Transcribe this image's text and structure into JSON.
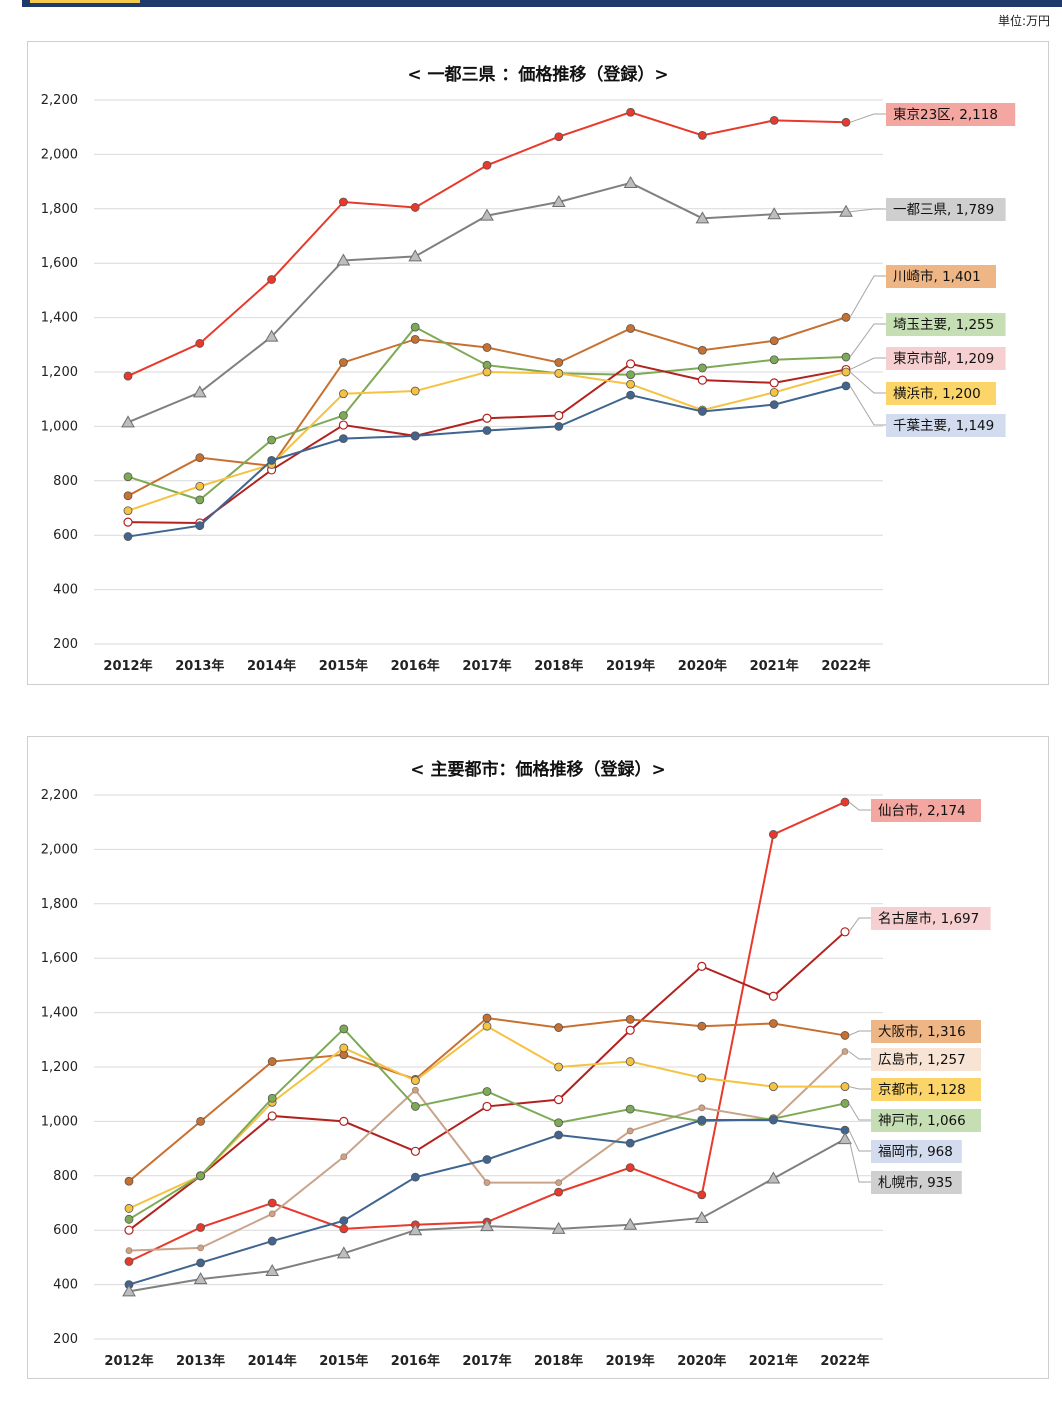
{
  "unit_label": "単位:万円",
  "chart_data": [
    {
      "type": "line",
      "title": "< 一都三県 ：価格推移（登録）>",
      "categories": [
        "2012年",
        "2013年",
        "2014年",
        "2015年",
        "2016年",
        "2017年",
        "2018年",
        "2019年",
        "2020年",
        "2021年",
        "2022年"
      ],
      "ylim": [
        200,
        2200
      ],
      "yticks": [
        "2,200",
        "2,000",
        "1,800",
        "1,600",
        "1,400",
        "1,200",
        "1,000",
        "800",
        "600",
        "400",
        "200"
      ],
      "grid": true,
      "series": [
        {
          "name": "東京23区",
          "label": "東京23区, 2,118",
          "color": "#e8392b",
          "marker": "circle",
          "label_bg": "#f4a6a0",
          "values": [
            1185,
            1305,
            1540,
            1825,
            1805,
            1960,
            2065,
            2155,
            2070,
            2125,
            2118
          ]
        },
        {
          "name": "一都三県",
          "label": "一都三県, 1,789",
          "color": "#808080",
          "marker": "triangle",
          "label_bg": "#cfcfcf",
          "values": [
            1015,
            1125,
            1330,
            1610,
            1625,
            1775,
            1825,
            1895,
            1765,
            1780,
            1789
          ]
        },
        {
          "name": "川崎市",
          "label": "川崎市, 1,401",
          "color": "#c8702f",
          "marker": "circle",
          "label_bg": "#eeb585",
          "values": [
            745,
            885,
            855,
            1235,
            1320,
            1290,
            1235,
            1360,
            1280,
            1315,
            1401
          ]
        },
        {
          "name": "埼玉主要",
          "label": "埼玉主要, 1,255",
          "color": "#7daa55",
          "marker": "circle",
          "label_bg": "#c6deb3",
          "values": [
            815,
            730,
            950,
            1040,
            1365,
            1225,
            1195,
            1190,
            1215,
            1245,
            1255
          ]
        },
        {
          "name": "東京市部",
          "label": "東京市部, 1,209",
          "color": "#b2221f",
          "marker": "hollow",
          "label_bg": "#f6cfd0",
          "values": [
            648,
            645,
            840,
            1005,
            965,
            1030,
            1040,
            1230,
            1170,
            1160,
            1209
          ]
        },
        {
          "name": "横浜市",
          "label": "横浜市, 1,200",
          "color": "#f5c242",
          "marker": "circle",
          "label_bg": "#fbd46a",
          "values": [
            690,
            780,
            860,
            1120,
            1130,
            1200,
            1195,
            1155,
            1060,
            1125,
            1200
          ]
        },
        {
          "name": "千葉主要",
          "label": "千葉主要, 1,149",
          "color": "#3f6590",
          "marker": "circle",
          "label_bg": "#d3dcee",
          "values": [
            595,
            635,
            875,
            955,
            965,
            985,
            1000,
            1115,
            1055,
            1080,
            1149
          ]
        }
      ]
    },
    {
      "type": "line",
      "title": "< 主要都市：価格推移（登録）>",
      "categories": [
        "2012年",
        "2013年",
        "2014年",
        "2015年",
        "2016年",
        "2017年",
        "2018年",
        "2019年",
        "2020年",
        "2021年",
        "2022年"
      ],
      "ylim": [
        200,
        2200
      ],
      "yticks": [
        "2,200",
        "2,000",
        "1,800",
        "1,600",
        "1,400",
        "1,200",
        "1,000",
        "800",
        "600",
        "400",
        "200"
      ],
      "grid": true,
      "series": [
        {
          "name": "仙台市",
          "label": "仙台市, 2,174",
          "color": "#e8392b",
          "marker": "circle",
          "label_bg": "#f4a6a0",
          "values": [
            485,
            610,
            700,
            605,
            620,
            630,
            740,
            830,
            730,
            2055,
            2174
          ]
        },
        {
          "name": "名古屋市",
          "label": "名古屋市, 1,697",
          "color": "#b2221f",
          "marker": "hollow",
          "label_bg": "#f6cfd0",
          "values": [
            600,
            800,
            1020,
            1000,
            890,
            1055,
            1080,
            1335,
            1570,
            1460,
            1697
          ]
        },
        {
          "name": "大阪市",
          "label": "大阪市, 1,316",
          "color": "#c8702f",
          "marker": "circle",
          "label_bg": "#eeb585",
          "values": [
            780,
            1000,
            1220,
            1245,
            1155,
            1380,
            1345,
            1375,
            1350,
            1360,
            1316
          ]
        },
        {
          "name": "広島市",
          "label": "広島市, 1,257",
          "color": "#c9a48a",
          "marker": "smallcircle",
          "label_bg": "#f8e4d4",
          "values": [
            525,
            535,
            660,
            870,
            1115,
            775,
            775,
            965,
            1050,
            1005,
            1257
          ]
        },
        {
          "name": "京都市",
          "label": "京都市, 1,128",
          "color": "#f5c242",
          "marker": "circle",
          "label_bg": "#fbd46a",
          "values": [
            680,
            800,
            1070,
            1270,
            1150,
            1350,
            1200,
            1220,
            1160,
            1128,
            1128
          ]
        },
        {
          "name": "神戸市",
          "label": "神戸市, 1,066",
          "color": "#7daa55",
          "marker": "circle",
          "label_bg": "#c6deb3",
          "values": [
            640,
            800,
            1085,
            1340,
            1055,
            1110,
            995,
            1045,
            1000,
            1010,
            1066
          ]
        },
        {
          "name": "福岡市",
          "label": "福岡市, 968",
          "color": "#3f6590",
          "marker": "circle",
          "label_bg": "#d3dcee",
          "values": [
            400,
            480,
            560,
            635,
            795,
            860,
            950,
            920,
            1005,
            1005,
            968
          ]
        },
        {
          "name": "札幌市",
          "label": "札幌市, 935",
          "color": "#808080",
          "marker": "triangle",
          "label_bg": "#cfcfcf",
          "values": [
            375,
            420,
            450,
            515,
            600,
            615,
            605,
            620,
            645,
            790,
            935
          ]
        }
      ]
    }
  ]
}
